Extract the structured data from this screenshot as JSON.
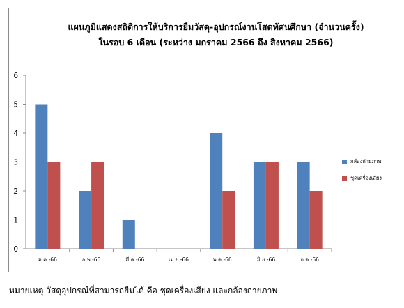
{
  "chart_data": {
    "type": "bar",
    "title": [
      "แผนภูมิแสดงสถิติการให้บริการยืมวัสดุ-อุปกรณ์งานโสตทัศนศึกษา  (จำนวนครั้ง)",
      "ในรอบ 6 เดือน (ระหว่าง มกราคม 2566 ถึง สิงหาคม 2566)"
    ],
    "categories": [
      "ม.ค.-66",
      "ก.พ.-66",
      "มี.ค.-66",
      "เม.ย.-66",
      "พ.ค.-66",
      "มิ.ย.-66",
      "ก.ค.-66"
    ],
    "series": [
      {
        "name": "กล้องถ่ายภาพ",
        "color": "#4f81bd",
        "values": [
          5,
          2,
          1,
          0,
          4,
          3,
          3
        ]
      },
      {
        "name": "ชุดเครื่องเสียง",
        "color": "#c0504d",
        "values": [
          3,
          3,
          0,
          0,
          2,
          3,
          2
        ]
      }
    ],
    "ylim": [
      0,
      6
    ],
    "yticks": [
      0,
      1,
      2,
      3,
      4,
      5,
      6
    ],
    "legend_position": "right",
    "grid": false
  },
  "note": "หมายเหตุ วัสดุอุปกรณ์ที่สามารถยืมได้  คือ ชุดเครื่องเสียง และกล้องถ่ายภาพ"
}
